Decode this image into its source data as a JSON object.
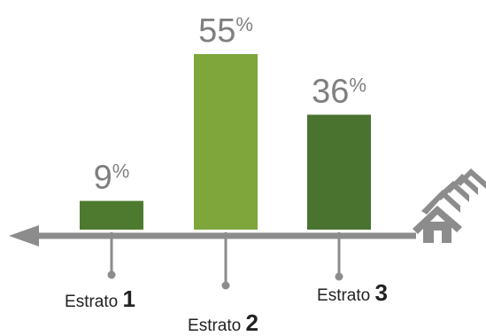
{
  "chart_data": {
    "type": "bar",
    "categories": [
      {
        "prefix": "Estrato",
        "number": "1"
      },
      {
        "prefix": "Estrato",
        "number": "2"
      },
      {
        "prefix": "Estrato",
        "number": "3"
      }
    ],
    "values": [
      9,
      55,
      36
    ],
    "value_labels": [
      {
        "number": "9",
        "unit": "%"
      },
      {
        "number": "55",
        "unit": "%"
      },
      {
        "number": "36",
        "unit": "%"
      }
    ],
    "colors": [
      "#4e7a2f",
      "#7ea63b",
      "#4a7330"
    ],
    "axis_color": "#8c8c8c",
    "icon": "houses-icon",
    "ylim": [
      0,
      60
    ]
  }
}
